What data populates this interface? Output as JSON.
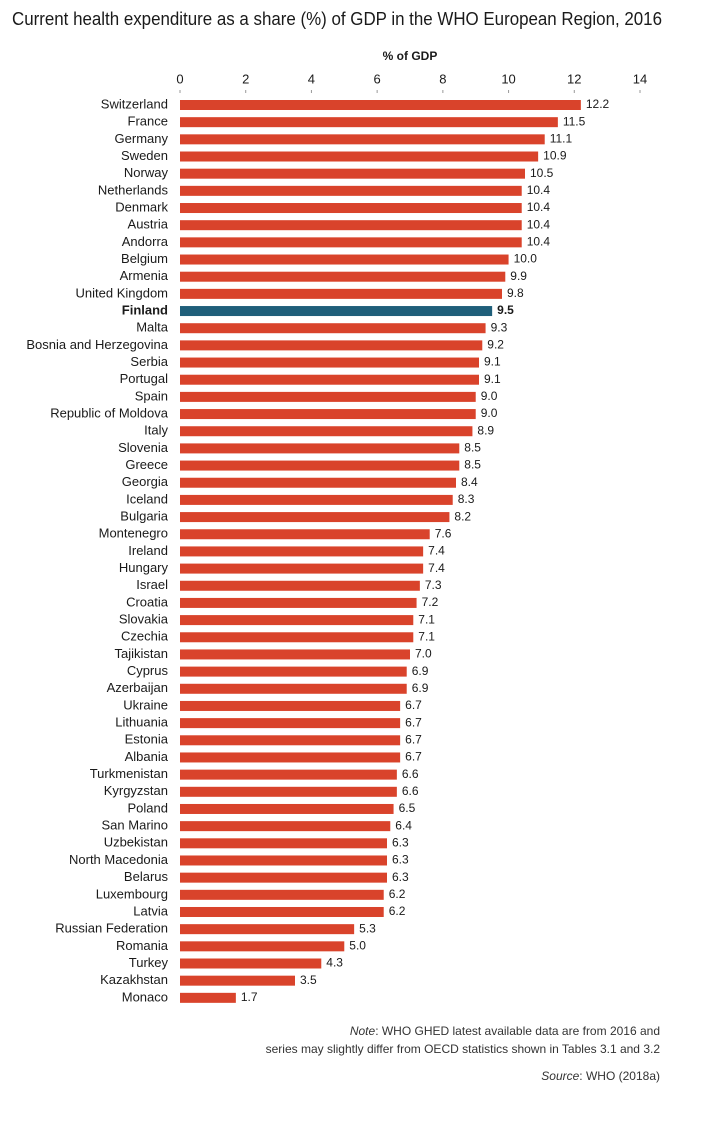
{
  "chart_data": {
    "type": "hbar",
    "title": "Current health expenditure as a share (%) of GDP in the WHO European  Region, 2016",
    "x_label": "% of GDP",
    "categories": [
      "Switzerland",
      "France",
      "Germany",
      "Sweden",
      "Norway",
      "Netherlands",
      "Denmark",
      "Austria",
      "Andorra",
      "Belgium",
      "Armenia",
      "United Kingdom",
      "Finland",
      "Malta",
      "Bosnia and Herzegovina",
      "Serbia",
      "Portugal",
      "Spain",
      "Republic of Moldova",
      "Italy",
      "Slovenia",
      "Greece",
      "Georgia",
      "Iceland",
      "Bulgaria",
      "Montenegro",
      "Ireland",
      "Hungary",
      "Israel",
      "Croatia",
      "Slovakia",
      "Czechia",
      "Tajikistan",
      "Cyprus",
      "Azerbaijan",
      "Ukraine",
      "Lithuania",
      "Estonia",
      "Albania",
      "Turkmenistan",
      "Kyrgyzstan",
      "Poland",
      "San Marino",
      "Uzbekistan",
      "North Macedonia",
      "Belarus",
      "Luxembourg",
      "Latvia",
      "Russian Federation",
      "Romania",
      "Turkey",
      "Kazakhstan",
      "Monaco"
    ],
    "values": [
      12.2,
      11.5,
      11.1,
      10.9,
      10.5,
      10.4,
      10.4,
      10.4,
      10.4,
      10.0,
      9.9,
      9.8,
      9.5,
      9.3,
      9.2,
      9.1,
      9.1,
      9.0,
      9.0,
      8.9,
      8.5,
      8.5,
      8.4,
      8.3,
      8.2,
      7.6,
      7.4,
      7.4,
      7.3,
      7.2,
      7.1,
      7.1,
      7.0,
      6.9,
      6.9,
      6.7,
      6.7,
      6.7,
      6.7,
      6.6,
      6.6,
      6.5,
      6.4,
      6.3,
      6.3,
      6.3,
      6.2,
      6.2,
      5.3,
      5.0,
      4.3,
      3.5,
      1.7
    ],
    "value_labels": [
      "12.2",
      "11.5",
      "11.1",
      "10.9",
      "10.5",
      "10.4",
      "10.4",
      "10.4",
      "10.4",
      "10.0",
      "9.9",
      "9.8",
      "9.5",
      "9.3",
      "9.2",
      "9.1",
      "9.1",
      "9.0",
      "9.0",
      "8.9",
      "8.5",
      "8.5",
      "8.4",
      "8.3",
      "8.2",
      "7.6",
      "7.4",
      "7.4",
      "7.3",
      "7.2",
      "7.1",
      "7.1",
      "7.0",
      "6.9",
      "6.9",
      "6.7",
      "6.7",
      "6.7",
      "6.7",
      "6.6",
      "6.6",
      "6.5",
      "6.4",
      "6.3",
      "6.3",
      "6.3",
      "6.2",
      "6.2",
      "5.3",
      "5.0",
      "4.3",
      "3.5",
      "1.7"
    ],
    "color": "#d9432b",
    "highlight_color": "#1f5f7a",
    "highlight_index": 12,
    "xlim": [
      0,
      14
    ],
    "xticks": [
      0,
      2,
      4,
      6,
      8,
      10,
      12,
      14
    ],
    "note_label": "Note",
    "note_lines": [
      ": WHO GHED latest available data are from 2016 and",
      "series may slightly differ from OECD statistics shown in Tables 3.1 and 3.2"
    ],
    "source_label": "Source",
    "source_text": ": WHO (2018a)"
  }
}
